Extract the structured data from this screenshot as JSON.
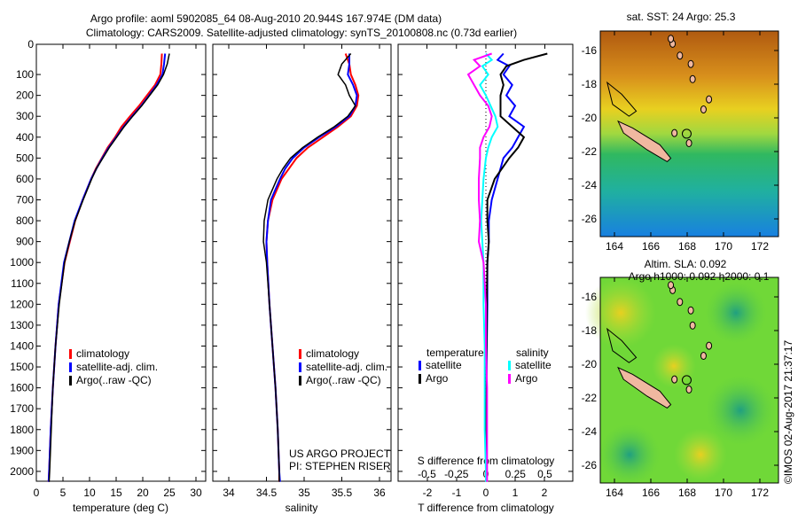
{
  "title_line1": "Argo profile: aoml 5902085_64 08-Aug-2010 20.944S 167.974E (DM data)",
  "title_line2": "Climatology: CARS2009. Satellite-adjusted climatology: synTS_20100808.nc (0.73d earlier)",
  "timestamp": "©IMOS 02-Aug-2017 21:37:17",
  "colors": {
    "climatology": "#ff0000",
    "satellite": "#0000ff",
    "argo": "#000000",
    "sal_satellite": "#00ffff",
    "sal_argo": "#ff00ff"
  },
  "chart_data": [
    {
      "type": "line",
      "title": "",
      "xlabel": "temperature (deg C)",
      "ylabel": "",
      "xlim": [
        -0.5,
        31.5
      ],
      "ylim": [
        2050,
        -45
      ],
      "xticks": [
        "0",
        "5",
        "10",
        "15",
        "20",
        "25",
        "30"
      ],
      "yticks": [
        "0",
        "100",
        "200",
        "300",
        "400",
        "500",
        "600",
        "700",
        "800",
        "900",
        "1000",
        "1100",
        "1200",
        "1300",
        "1400",
        "1500",
        "1600",
        "1700",
        "1800",
        "1900",
        "2000"
      ],
      "legend": [
        "climatology",
        "satellite-adj. clim.",
        "Argo(..raw -QC)"
      ],
      "depth": [
        0,
        50,
        100,
        150,
        200,
        250,
        300,
        350,
        400,
        450,
        500,
        550,
        600,
        700,
        800,
        900,
        1000,
        1200,
        1400,
        1600,
        1800,
        2000,
        2050
      ],
      "series": [
        {
          "name": "climatology",
          "values": [
            23.6,
            23.5,
            23.3,
            22.3,
            20.8,
            19.3,
            17.6,
            16.0,
            14.8,
            13.4,
            12.3,
            11.2,
            10.3,
            8.7,
            7.3,
            6.3,
            5.3,
            4.2,
            3.6,
            3.1,
            2.7,
            2.4,
            2.3
          ]
        },
        {
          "name": "satellite-adj. clim.",
          "values": [
            24.2,
            24.0,
            23.7,
            22.6,
            21.2,
            19.7,
            18.0,
            16.4,
            15.0,
            13.6,
            12.4,
            11.3,
            10.3,
            8.7,
            7.2,
            6.2,
            5.2,
            4.2,
            3.6,
            3.1,
            2.7,
            2.4,
            2.3
          ]
        },
        {
          "name": "Argo(..raw -QC)",
          "values": [
            25.0,
            24.6,
            23.9,
            22.8,
            21.3,
            19.8,
            18.1,
            16.5,
            15.1,
            13.7,
            12.5,
            11.3,
            10.4,
            8.8,
            7.3,
            6.2,
            5.3,
            4.3,
            3.6,
            3.1,
            2.8,
            2.5,
            2.4
          ]
        }
      ]
    },
    {
      "type": "line",
      "xlabel": "salinity",
      "xlim": [
        33.7,
        36.1
      ],
      "ylim": [
        2050,
        -45
      ],
      "xticks": [
        "34",
        "34.5",
        "35",
        "35.5",
        "36"
      ],
      "legend": [
        "climatology",
        "satellite-adj. clim.",
        "Argo(..raw -QC)"
      ],
      "annotation": [
        "US ARGO PROJECT",
        "PI: STEPHEN RISER"
      ],
      "depth": [
        0,
        50,
        100,
        150,
        200,
        250,
        300,
        350,
        400,
        450,
        500,
        550,
        600,
        700,
        800,
        900,
        1000,
        1200,
        1400,
        1600,
        1800,
        2000,
        2050
      ],
      "series": [
        {
          "name": "climatology",
          "values": [
            35.55,
            35.6,
            35.62,
            35.68,
            35.72,
            35.7,
            35.62,
            35.45,
            35.25,
            35.05,
            34.9,
            34.8,
            34.7,
            34.58,
            34.52,
            34.5,
            34.51,
            34.54,
            34.58,
            34.62,
            34.65,
            34.67,
            34.67
          ]
        },
        {
          "name": "satellite-adj. clim.",
          "values": [
            35.6,
            35.6,
            35.58,
            35.65,
            35.7,
            35.68,
            35.6,
            35.42,
            35.2,
            35.0,
            34.85,
            34.75,
            34.68,
            34.56,
            34.52,
            34.5,
            34.51,
            34.54,
            34.58,
            34.62,
            34.65,
            34.67,
            34.68
          ]
        },
        {
          "name": "Argo(..raw -QC)",
          "values": [
            35.62,
            35.5,
            35.45,
            35.55,
            35.6,
            35.68,
            35.58,
            35.4,
            35.18,
            34.98,
            34.82,
            34.72,
            34.64,
            34.52,
            34.47,
            34.46,
            34.5,
            34.54,
            34.58,
            34.62,
            34.65,
            34.67,
            34.67
          ]
        }
      ]
    },
    {
      "type": "line",
      "xlabel": "T difference from climatology",
      "xlabel2": "S difference from climatology",
      "xlim": [
        -3,
        3
      ],
      "xlim2": [
        -0.75,
        0.75
      ],
      "ylim": [
        2050,
        -45
      ],
      "xticks": [
        "-2",
        "-1",
        "0",
        "1",
        "2"
      ],
      "xticks2": [
        "-0.5",
        "-0.25",
        "0",
        "0.25",
        "0.5"
      ],
      "legend_temperature": {
        "title": "temperature",
        "items": [
          "satellite",
          "Argo"
        ]
      },
      "legend_salinity": {
        "title": "salinity",
        "items": [
          "satellite",
          "Argo"
        ]
      },
      "depth": [
        0,
        30,
        60,
        100,
        150,
        200,
        250,
        300,
        350,
        400,
        450,
        500,
        600,
        700,
        800,
        900,
        1000,
        1200,
        1400,
        1600,
        1800,
        2000,
        2050
      ],
      "series": [
        {
          "name": "temperature satellite",
          "axis": "T",
          "values": [
            0.6,
            0.4,
            0.8,
            0.6,
            0.9,
            0.7,
            1.0,
            0.8,
            1.3,
            1.1,
            0.9,
            0.6,
            0.4,
            0.2,
            0.1,
            0.1,
            0.05,
            0.05,
            0.03,
            0.02,
            0.02,
            0.01,
            0.01
          ]
        },
        {
          "name": "temperature Argo",
          "axis": "T",
          "values": [
            2.1,
            1.3,
            0.7,
            0.5,
            0.6,
            0.5,
            0.5,
            0.5,
            0.9,
            1.3,
            1.1,
            0.8,
            0.3,
            0.05,
            0.05,
            0.1,
            0.05,
            0.03,
            0.02,
            0.02,
            0.01,
            0.01,
            0.01
          ]
        },
        {
          "name": "salinity satellite",
          "axis": "S",
          "values": [
            0.0,
            0.05,
            -0.03,
            0.02,
            -0.05,
            0.0,
            0.04,
            0.08,
            0.1,
            0.05,
            0.02,
            0.0,
            -0.02,
            -0.03,
            -0.04,
            -0.03,
            -0.02,
            -0.02,
            -0.01,
            -0.01,
            -0.01,
            0.0,
            0.0
          ]
        },
        {
          "name": "salinity Argo",
          "axis": "S",
          "values": [
            0.05,
            -0.1,
            -0.05,
            -0.15,
            -0.1,
            -0.05,
            0.02,
            0.05,
            0.03,
            -0.02,
            -0.05,
            -0.05,
            -0.06,
            -0.06,
            -0.05,
            -0.06,
            -0.02,
            0.0,
            0.0,
            0.01,
            0.01,
            0.01,
            0.01
          ]
        }
      ]
    },
    {
      "type": "heatmap",
      "title": "sat. SST: 24 Argo: 25.3",
      "xticks": [
        "164",
        "166",
        "168",
        "170",
        "172"
      ],
      "yticks": [
        "-16",
        "-18",
        "-20",
        "-22",
        "-24",
        "-26"
      ]
    },
    {
      "type": "heatmap",
      "title": "Altim. SLA: 0.092",
      "subtitle": "Argo h1000: 0.092 h2000: 0.1",
      "xticks": [
        "164",
        "166",
        "168",
        "170",
        "172"
      ],
      "yticks": [
        "-16",
        "-18",
        "-20",
        "-22",
        "-24",
        "-26"
      ]
    }
  ]
}
